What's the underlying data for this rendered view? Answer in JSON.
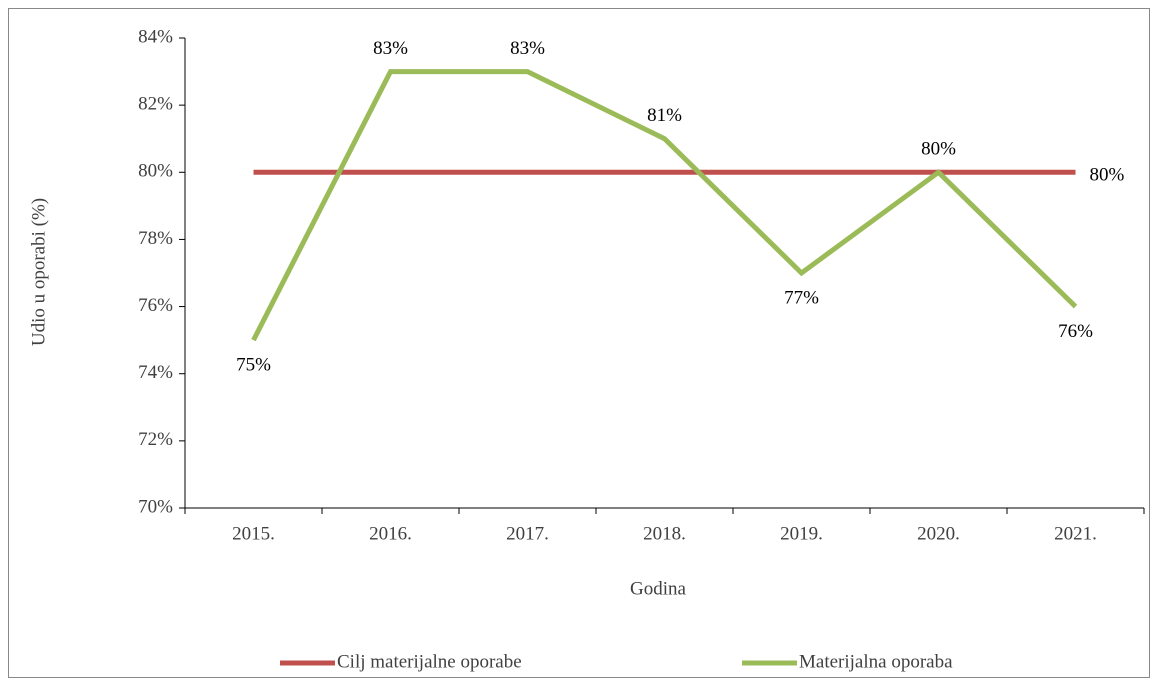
{
  "chart_data": {
    "type": "line",
    "x_label": "Godina",
    "y_label": "Udio u oporabi (%)",
    "categories": [
      "2015.",
      "2016.",
      "2017.",
      "2018.",
      "2019.",
      "2020.",
      "2021."
    ],
    "series": [
      {
        "name": "Cilj materijalne oporabe",
        "color": "#c0504d",
        "values": [
          80,
          80,
          80,
          80,
          80,
          80,
          80
        ],
        "value_labels": [
          null,
          null,
          null,
          null,
          null,
          null,
          "80%"
        ]
      },
      {
        "name": "Materijalna oporaba",
        "color": "#9bbb59",
        "values": [
          75,
          83,
          83,
          81,
          77,
          80,
          76
        ],
        "value_labels": [
          "75%",
          "83%",
          "83%",
          "81%",
          "77%",
          "80%",
          "76%"
        ]
      }
    ],
    "ylim": [
      70,
      84
    ],
    "yticks": [
      {
        "value": 70,
        "label": "70%"
      },
      {
        "value": 72,
        "label": "72%"
      },
      {
        "value": 74,
        "label": "74%"
      },
      {
        "value": 76,
        "label": "76%"
      },
      {
        "value": 78,
        "label": "78%"
      },
      {
        "value": 80,
        "label": "80%"
      },
      {
        "value": 82,
        "label": "82%"
      },
      {
        "value": 84,
        "label": "84%"
      }
    ],
    "legend": "bottom"
  }
}
